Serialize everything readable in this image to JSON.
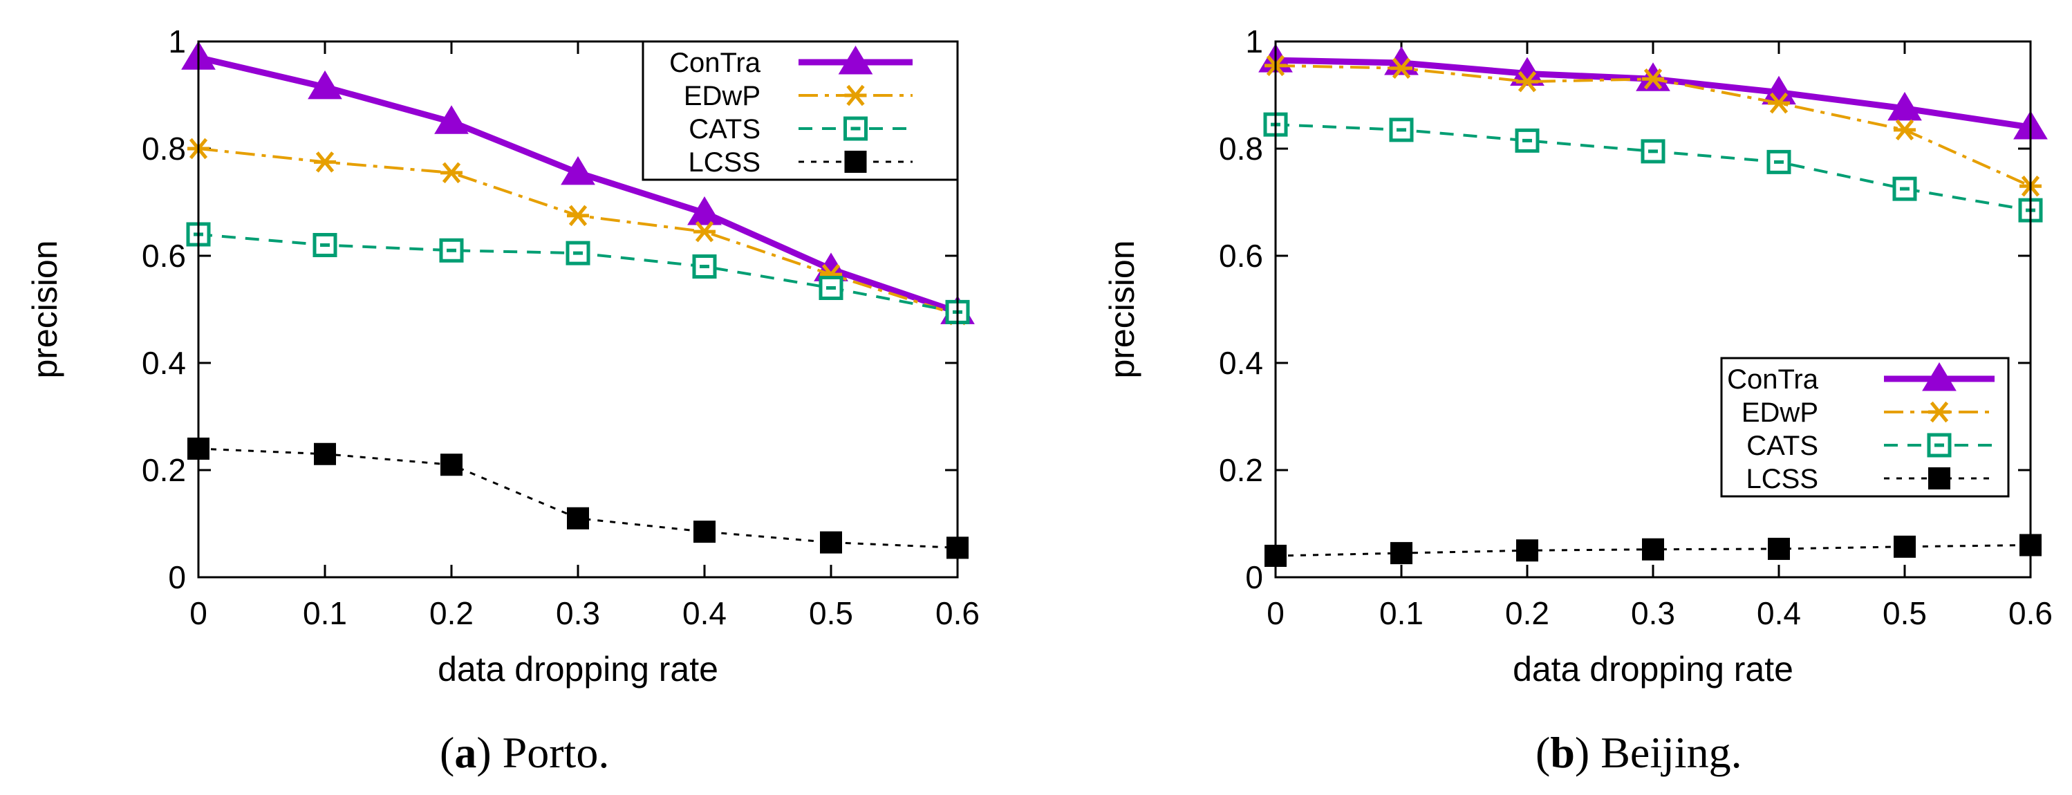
{
  "chart_data": [
    {
      "type": "line",
      "panel": "a",
      "caption_letter": "a",
      "caption_text": "Porto.",
      "title": "",
      "xlabel": "data dropping rate",
      "ylabel": "precision",
      "x": [
        0,
        0.1,
        0.2,
        0.3,
        0.4,
        0.5,
        0.6
      ],
      "xticks": [
        "0",
        "0.1",
        "0.2",
        "0.3",
        "0.4",
        "0.5",
        "0.6"
      ],
      "yticks": [
        "0",
        "0.2",
        "0.4",
        "0.6",
        "0.8",
        "1"
      ],
      "xlim": [
        0,
        0.6
      ],
      "ylim": [
        0,
        1
      ],
      "legend_position": "top-right",
      "series": [
        {
          "name": "ConTra",
          "values": [
            0.97,
            0.915,
            0.85,
            0.755,
            0.68,
            0.575,
            0.495
          ]
        },
        {
          "name": "EDwP",
          "values": [
            0.8,
            0.775,
            0.755,
            0.675,
            0.645,
            0.565,
            0.49
          ]
        },
        {
          "name": "CATS",
          "values": [
            0.64,
            0.62,
            0.61,
            0.605,
            0.58,
            0.54,
            0.495
          ]
        },
        {
          "name": "LCSS",
          "values": [
            0.24,
            0.23,
            0.21,
            0.11,
            0.085,
            0.065,
            0.055
          ]
        }
      ]
    },
    {
      "type": "line",
      "panel": "b",
      "caption_letter": "b",
      "caption_text": "Beijing.",
      "title": "",
      "xlabel": "data dropping rate",
      "ylabel": "precision",
      "x": [
        0,
        0.1,
        0.2,
        0.3,
        0.4,
        0.5,
        0.6
      ],
      "xticks": [
        "0",
        "0.1",
        "0.2",
        "0.3",
        "0.4",
        "0.5",
        "0.6"
      ],
      "yticks": [
        "0",
        "0.2",
        "0.4",
        "0.6",
        "0.8",
        "1"
      ],
      "xlim": [
        0,
        0.6
      ],
      "ylim": [
        0,
        1
      ],
      "legend_position": "bottom-right",
      "series": [
        {
          "name": "ConTra",
          "values": [
            0.965,
            0.96,
            0.94,
            0.93,
            0.905,
            0.875,
            0.84
          ]
        },
        {
          "name": "EDwP",
          "values": [
            0.955,
            0.95,
            0.925,
            0.93,
            0.885,
            0.835,
            0.73
          ]
        },
        {
          "name": "CATS",
          "values": [
            0.845,
            0.835,
            0.815,
            0.795,
            0.775,
            0.725,
            0.685
          ]
        },
        {
          "name": "LCSS",
          "values": [
            0.04,
            0.045,
            0.05,
            0.052,
            0.053,
            0.057,
            0.06
          ]
        }
      ]
    }
  ],
  "styles": {
    "ConTra": {
      "color": "#9400D3",
      "marker": "triangle"
    },
    "EDwP": {
      "color": "#E69F00",
      "marker": "asterisk"
    },
    "CATS": {
      "color": "#009E73",
      "marker": "boxed-square"
    },
    "LCSS": {
      "color": "#000000",
      "marker": "filled-square"
    }
  }
}
